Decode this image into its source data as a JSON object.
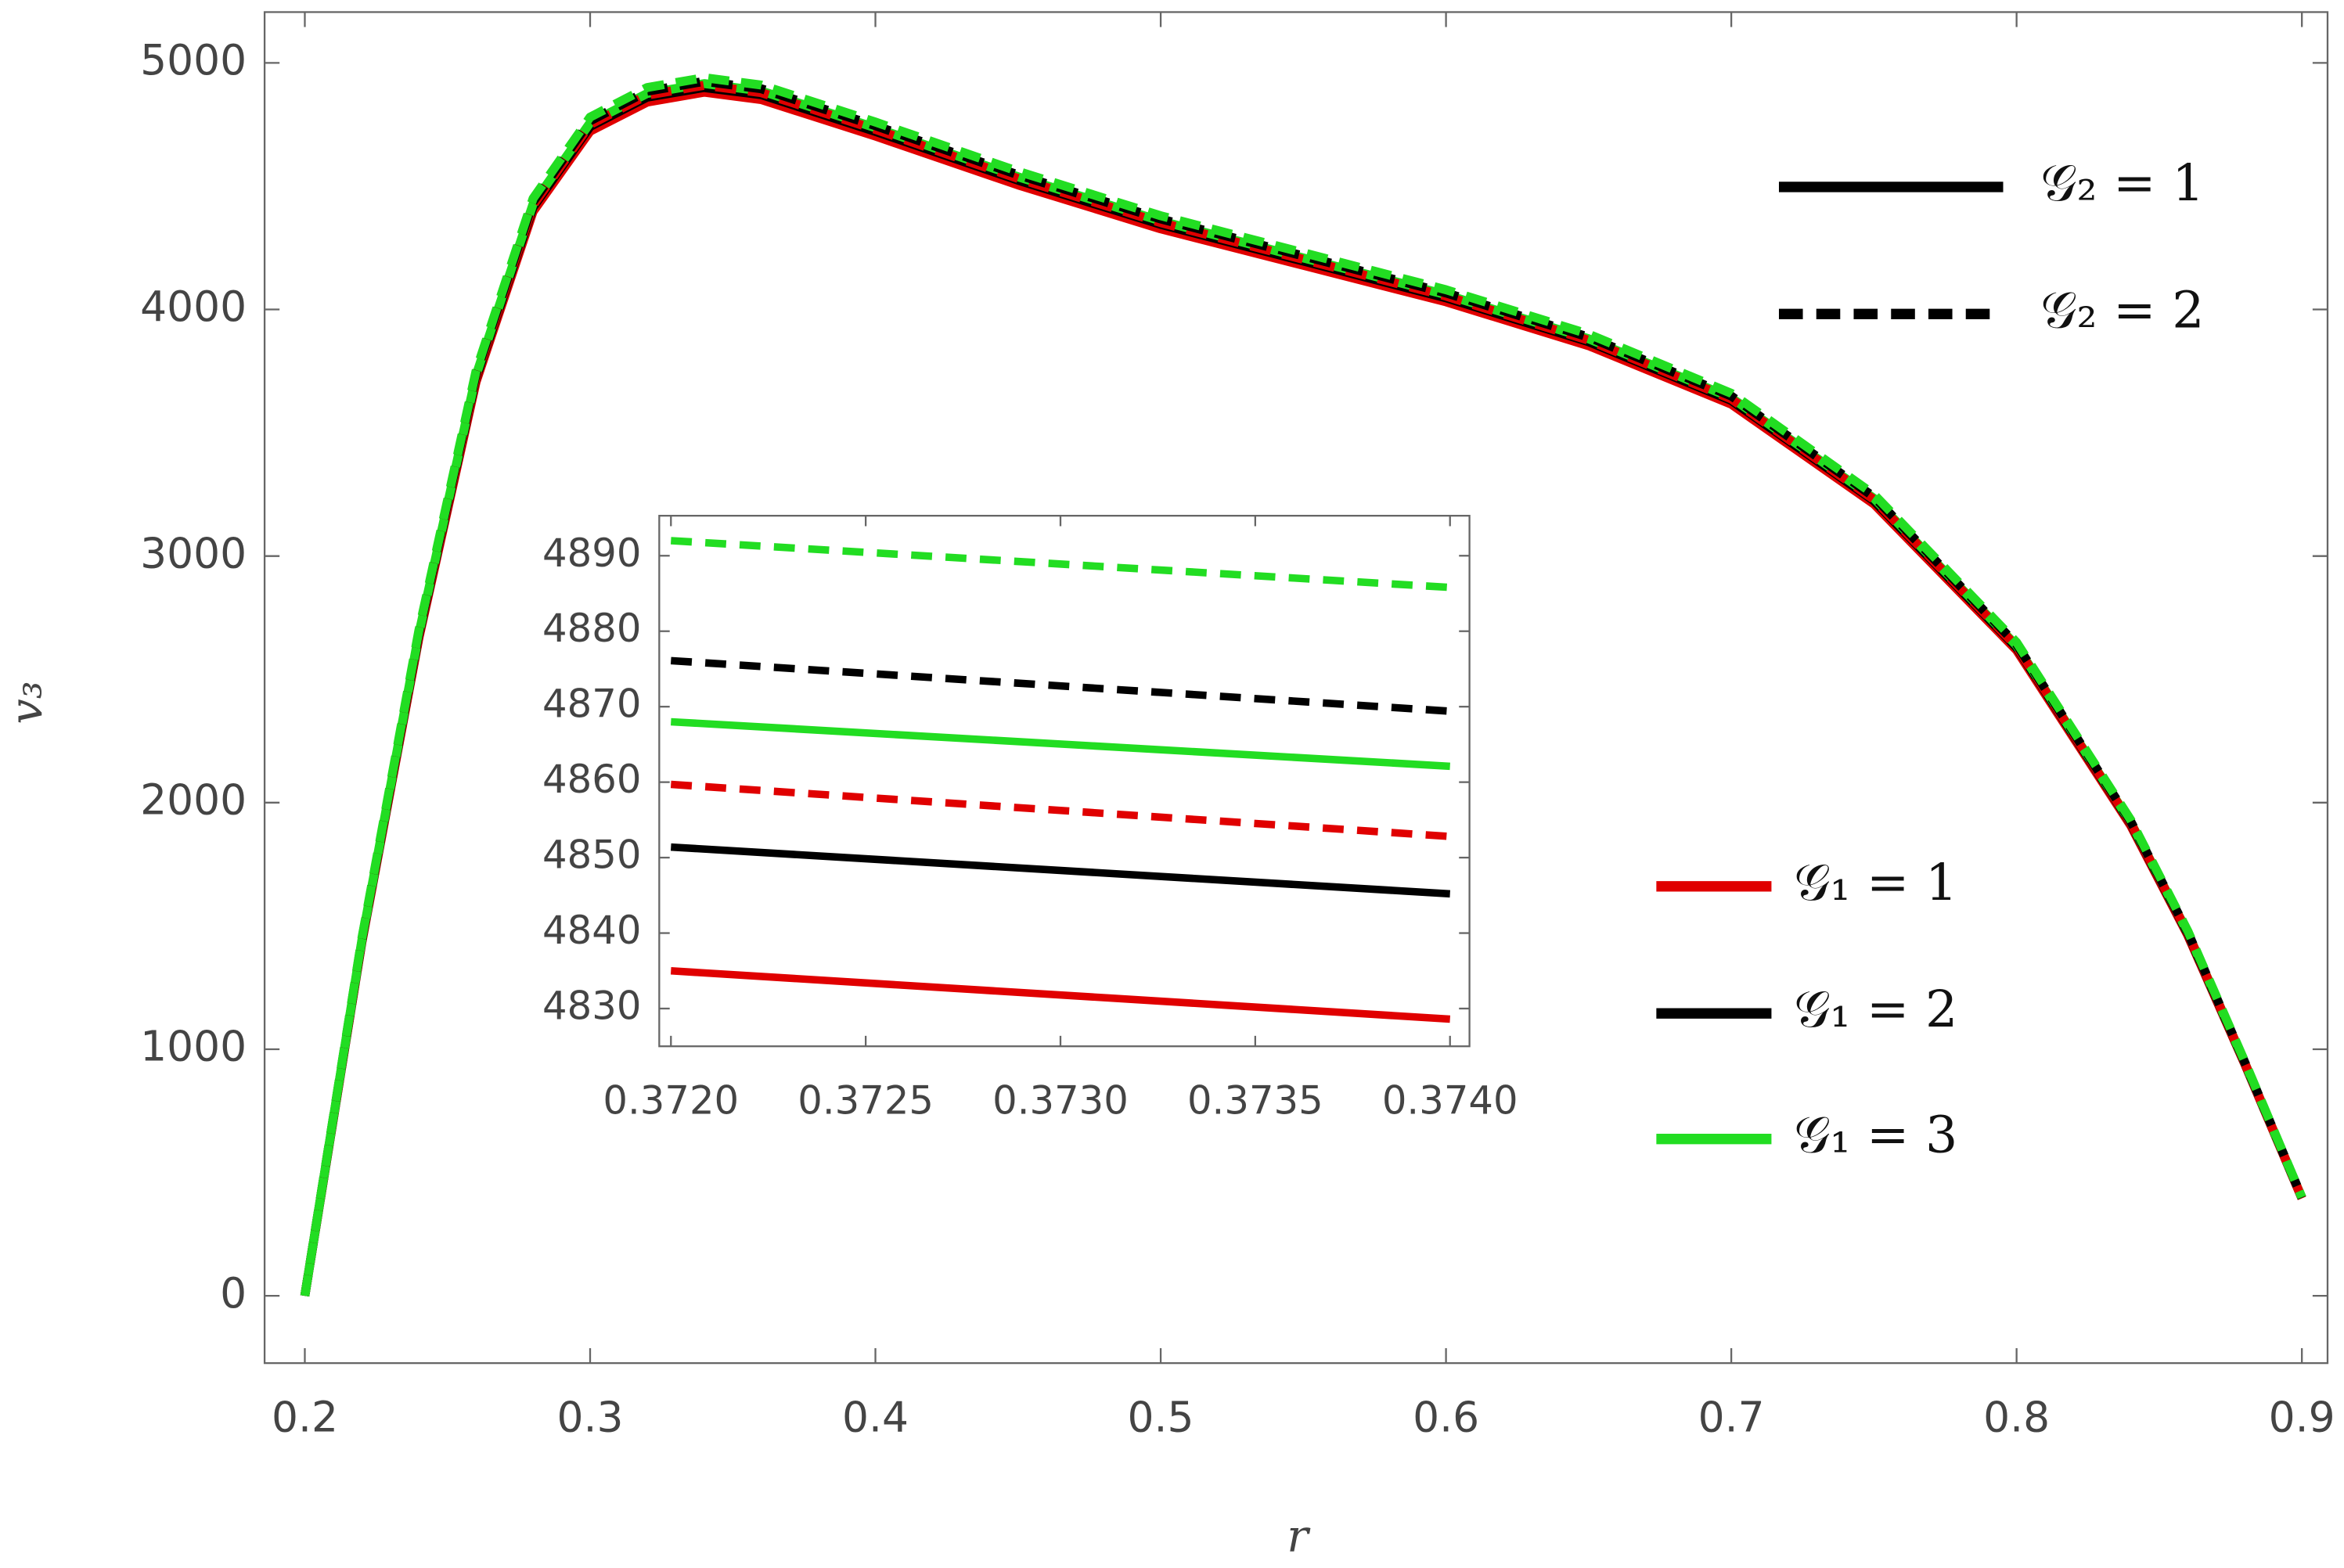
{
  "chart_data": [
    {
      "type": "line",
      "xlabel": "r",
      "ylabel": "v₃",
      "xlim": [
        0.1859,
        0.909
      ],
      "ylim": [
        -273,
        5206
      ],
      "xticks": [
        0.2,
        0.3,
        0.4,
        0.5,
        0.6,
        0.7,
        0.8,
        0.9
      ],
      "yticks": [
        0,
        1000,
        2000,
        3000,
        4000,
        5000
      ],
      "x": [
        0.2,
        0.22,
        0.24,
        0.26,
        0.28,
        0.3,
        0.32,
        0.34,
        0.36,
        0.4,
        0.45,
        0.5,
        0.55,
        0.6,
        0.65,
        0.7,
        0.75,
        0.8,
        0.84,
        0.86,
        0.88,
        0.9
      ],
      "series": [
        {
          "color": "#e00000",
          "dashed": false,
          "values": [
            0,
            1433,
            2668,
            3705,
            4397,
            4723,
            4841,
            4881,
            4851,
            4703,
            4505,
            4327,
            4179,
            4031,
            3853,
            3616,
            3211,
            2618,
            1907,
            1462,
            939,
            395
          ]
        },
        {
          "color": "#000000",
          "dashed": false,
          "values": [
            0,
            1438,
            2678,
            3720,
            4414,
            4742,
            4861,
            4900,
            4871,
            4722,
            4524,
            4345,
            4196,
            4047,
            3869,
            3631,
            3224,
            2629,
            1915,
            1468,
            942,
            397
          ]
        },
        {
          "color": "#22dd22",
          "dashed": false,
          "values": [
            0,
            1443,
            2687,
            3732,
            4428,
            4757,
            4876,
            4916,
            4886,
            4737,
            4538,
            4359,
            4209,
            4060,
            3881,
            3642,
            3234,
            2637,
            1920,
            1473,
            945,
            398
          ]
        },
        {
          "color": "#e00000",
          "dashed": true,
          "values": [
            0,
            1441,
            2683,
            3726,
            4422,
            4750,
            4869,
            4909,
            4879,
            4730,
            4531,
            4352,
            4203,
            4054,
            3875,
            3637,
            3229,
            2633,
            1918,
            1471,
            944,
            397
          ]
        },
        {
          "color": "#000000",
          "dashed": true,
          "values": [
            0,
            1446,
            2692,
            3739,
            4436,
            4765,
            4885,
            4925,
            4895,
            4745,
            4546,
            4367,
            4217,
            4067,
            3888,
            3649,
            3240,
            2642,
            1924,
            1475,
            947,
            399
          ]
        },
        {
          "color": "#22dd22",
          "dashed": true,
          "values": [
            0,
            1450,
            2700,
            3750,
            4450,
            4780,
            4900,
            4940,
            4910,
            4760,
            4560,
            4380,
            4230,
            4080,
            3900,
            3660,
            3250,
            2650,
            1930,
            1480,
            950,
            400
          ]
        }
      ],
      "style_legend": [
        {
          "label": "𝒢₂ = 1",
          "color": "#000000",
          "dashed": false
        },
        {
          "label": "𝒢₂ = 2",
          "color": "#000000",
          "dashed": true
        }
      ],
      "color_legend": [
        {
          "label": "𝒢₁ = 1",
          "color": "#e00000",
          "dashed": false
        },
        {
          "label": "𝒢₁ = 2",
          "color": "#000000",
          "dashed": false
        },
        {
          "label": "𝒢₁ = 3",
          "color": "#22dd22",
          "dashed": false
        }
      ]
    },
    {
      "type": "line",
      "xlim": [
        0.37197,
        0.37405
      ],
      "ylim": [
        4825.0,
        4895.3
      ],
      "xticks": [
        {
          "value": 0.372,
          "label": "0.3720"
        },
        {
          "value": 0.3725,
          "label": "0.3725"
        },
        {
          "value": 0.373,
          "label": "0.3730"
        },
        {
          "value": 0.3735,
          "label": "0.3735"
        },
        {
          "value": 0.374,
          "label": "0.3740"
        }
      ],
      "yticks": [
        4830,
        4840,
        4850,
        4860,
        4870,
        4880,
        4890
      ],
      "x": [
        0.372,
        0.374
      ],
      "series": [
        {
          "color": "#e00000",
          "dashed": false,
          "values": [
            4835.0,
            4828.6
          ]
        },
        {
          "color": "#000000",
          "dashed": false,
          "values": [
            4851.4,
            4845.2
          ]
        },
        {
          "color": "#22dd22",
          "dashed": false,
          "values": [
            4868.0,
            4862.1
          ]
        },
        {
          "color": "#e00000",
          "dashed": true,
          "values": [
            4859.7,
            4852.8
          ]
        },
        {
          "color": "#000000",
          "dashed": true,
          "values": [
            4876.1,
            4869.4
          ]
        },
        {
          "color": "#22dd22",
          "dashed": true,
          "values": [
            4892.0,
            4885.8
          ]
        }
      ]
    }
  ]
}
